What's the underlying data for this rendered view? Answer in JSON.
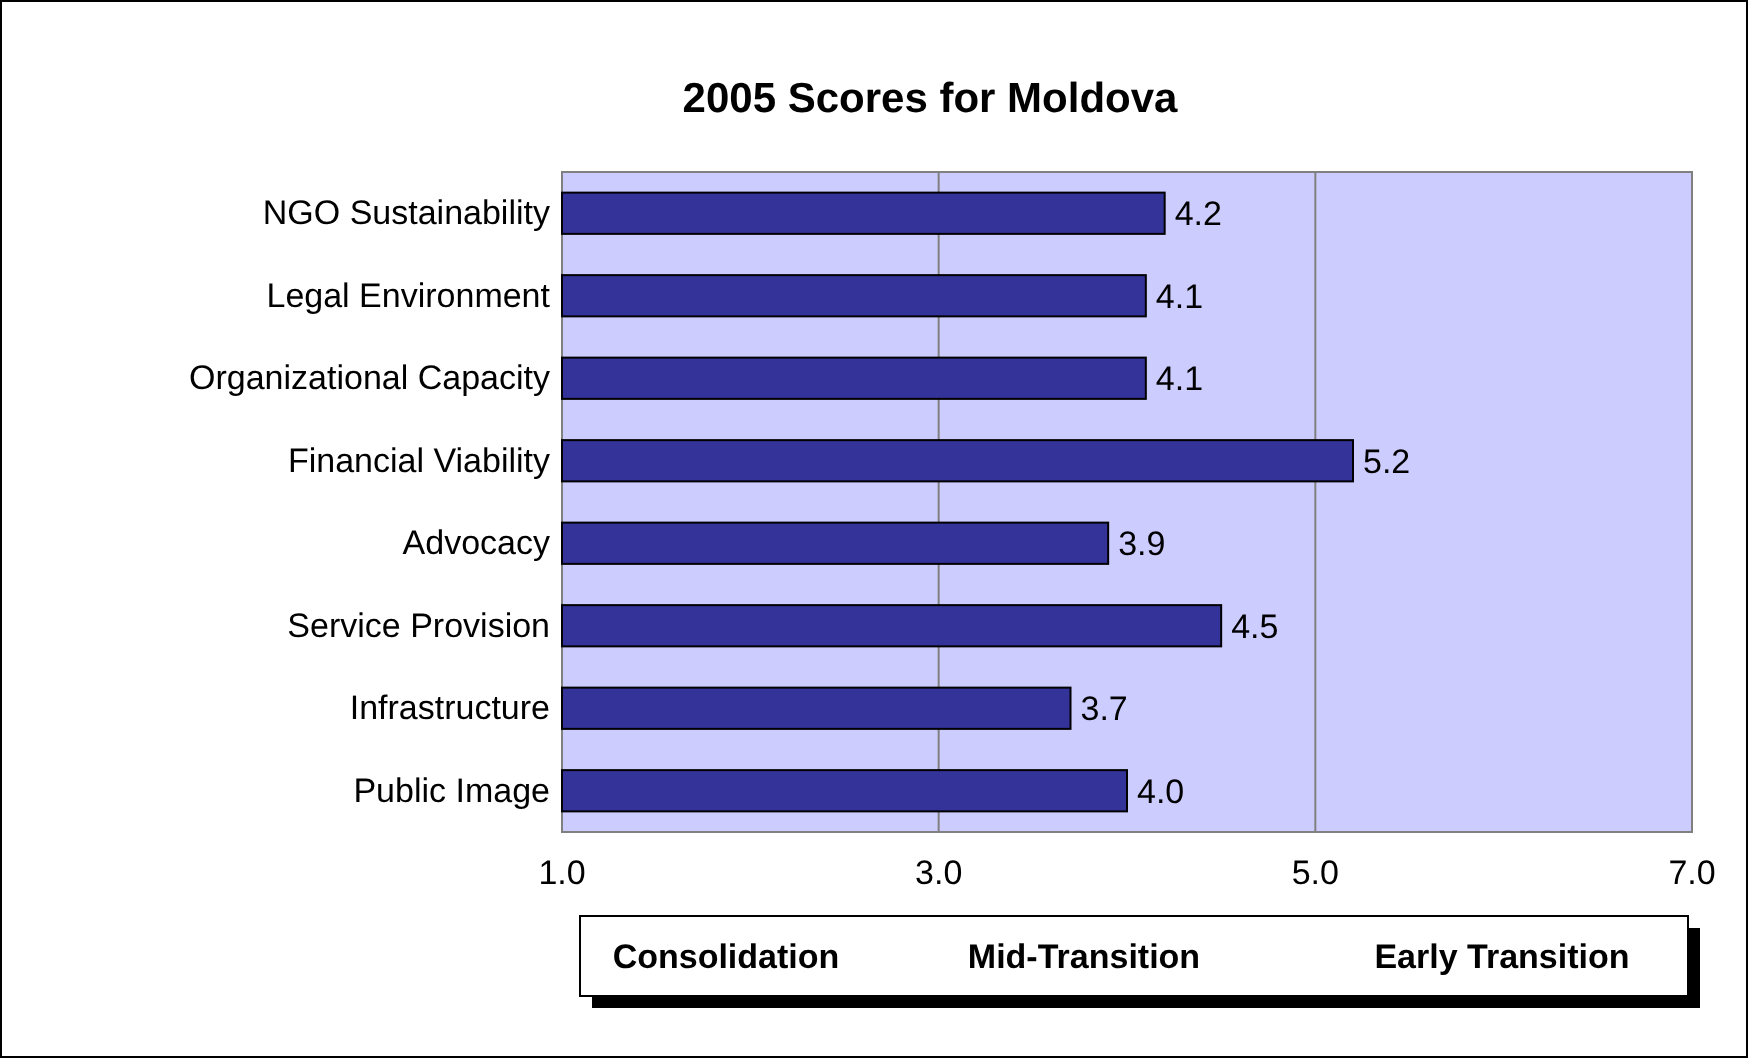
{
  "chart_data": {
    "type": "bar",
    "orientation": "horizontal",
    "title": "2005 Scores for Moldova",
    "categories": [
      "NGO Sustainability",
      "Legal Environment",
      "Organizational Capacity",
      "Financial Viability",
      "Advocacy",
      "Service Provision",
      "Infrastructure",
      "Public Image"
    ],
    "values": [
      4.2,
      4.1,
      4.1,
      5.2,
      3.9,
      4.5,
      3.7,
      4.0
    ],
    "value_labels": [
      "4.2",
      "4.1",
      "4.1",
      "5.2",
      "3.9",
      "4.5",
      "3.7",
      "4.0"
    ],
    "color": "#333399",
    "xlim": [
      1,
      7
    ],
    "xticks": [
      {
        "value": 1,
        "label": "1.0"
      },
      {
        "value": 3,
        "label": "3.0"
      },
      {
        "value": 5,
        "label": "5.0"
      },
      {
        "value": 7,
        "label": "7.0"
      }
    ],
    "grid": "x",
    "annotations": [
      "Consolidation",
      "Mid-Transition",
      "Early Transition"
    ]
  }
}
